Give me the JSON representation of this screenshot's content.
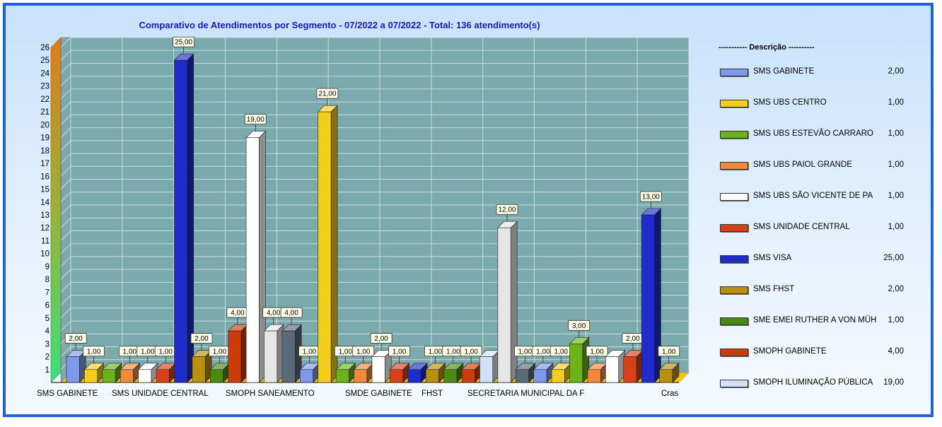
{
  "chart_data": {
    "type": "bar",
    "title": "Comparativo  de  Atendimentos  por  Segmento  -  07/2022  a  07/2022  -  Total:  136  atendimento(s)",
    "ylim": [
      0,
      26
    ],
    "yticks": [
      "1",
      "2",
      "3",
      "4",
      "5",
      "6",
      "7",
      "8",
      "9",
      "10",
      "11",
      "12",
      "13",
      "14",
      "15",
      "16",
      "17",
      "18",
      "19",
      "20",
      "21",
      "22",
      "23",
      "24",
      "25",
      "26"
    ],
    "grid": true,
    "legend_placement": "right",
    "category_labels": [
      "SMS GABINETE",
      "SMS UNIDADE CENTRAL",
      "SMOPH SANEAMENTO",
      "SMDE GABINETE",
      "FHST",
      "SECRETARIA MUNICIPAL DA F",
      "Cras"
    ],
    "legend_title": "----------- Descrição ----------",
    "legend": [
      {
        "name": "SMS GABINETE",
        "value": "2,00",
        "color": "#7e98ec"
      },
      {
        "name": "SMS UBS CENTRO",
        "value": "1,00",
        "color": "#f5cd1c"
      },
      {
        "name": "SMS UBS ESTEVÃO CARRARO",
        "value": "1,00",
        "color": "#6cb21a"
      },
      {
        "name": "SMS UBS PAIOL GRANDE",
        "value": "1,00",
        "color": "#f08a3a"
      },
      {
        "name": "SMS UBS SÃO VICENTE DE PA",
        "value": "1,00",
        "color": "#ffffff"
      },
      {
        "name": "SMS UNIDADE CENTRAL",
        "value": "1,00",
        "color": "#d8401a"
      },
      {
        "name": "SMS VISA",
        "value": "25,00",
        "color": "#1f2ccc"
      },
      {
        "name": "SMS FHST",
        "value": "2,00",
        "color": "#b8900e"
      },
      {
        "name": "SME EMEI RUTHER A VON MÜH",
        "value": "1,00",
        "color": "#4a8a10"
      },
      {
        "name": "SMOPH GABINETE",
        "value": "4,00",
        "color": "#cc3c08"
      },
      {
        "name": "SMOPH ILUMINAÇÃO PÚBLICA",
        "value": "19,00",
        "color": "#d2e1f5"
      }
    ],
    "bars": [
      {
        "value": 2,
        "label": "2,00",
        "color": "#7e98ec"
      },
      {
        "value": 1,
        "label": "1,00",
        "color": "#f5cd1c"
      },
      {
        "value": 1,
        "label": "",
        "color": "#6cb21a"
      },
      {
        "value": 1,
        "label": "1,00",
        "color": "#f08a3a"
      },
      {
        "value": 1,
        "label": "1,00",
        "color": "#ffffff"
      },
      {
        "value": 1,
        "label": "1,00",
        "color": "#d8401a"
      },
      {
        "value": 25,
        "label": "25,00",
        "color": "#1f2ccc"
      },
      {
        "value": 2,
        "label": "2,00",
        "color": "#b8900e"
      },
      {
        "value": 1,
        "label": "1,00",
        "color": "#4a8a10"
      },
      {
        "value": 4,
        "label": "4,00",
        "color": "#cc3c08"
      },
      {
        "value": 19,
        "label": "19,00",
        "color": "#ffffff"
      },
      {
        "value": 4,
        "label": "4,00",
        "color": "#e6e6e6"
      },
      {
        "value": 4,
        "label": "4,00",
        "color": "#5a6a78"
      },
      {
        "value": 1,
        "label": "1,00",
        "color": "#7e98ec"
      },
      {
        "value": 21,
        "label": "21,00",
        "color": "#f5cd1c"
      },
      {
        "value": 1,
        "label": "1,00",
        "color": "#6cb21a"
      },
      {
        "value": 1,
        "label": "1,00",
        "color": "#f08a3a"
      },
      {
        "value": 2,
        "label": "2,00",
        "color": "#ffffff"
      },
      {
        "value": 1,
        "label": "1,00",
        "color": "#d8401a"
      },
      {
        "value": 1,
        "label": "",
        "color": "#1f2ccc"
      },
      {
        "value": 1,
        "label": "1,00",
        "color": "#b8900e"
      },
      {
        "value": 1,
        "label": "1,00",
        "color": "#4a8a10"
      },
      {
        "value": 1,
        "label": "1,00",
        "color": "#cc3c08"
      },
      {
        "value": 2,
        "label": "",
        "color": "#d2e1f5"
      },
      {
        "value": 12,
        "label": "12,00",
        "color": "#e6e6e6"
      },
      {
        "value": 1,
        "label": "1,00",
        "color": "#5a6a78"
      },
      {
        "value": 1,
        "label": "1,00",
        "color": "#7e98ec"
      },
      {
        "value": 1,
        "label": "1,00",
        "color": "#f5cd1c"
      },
      {
        "value": 3,
        "label": "3,00",
        "color": "#6cb21a"
      },
      {
        "value": 1,
        "label": "1,00",
        "color": "#f08a3a"
      },
      {
        "value": 2,
        "label": "",
        "color": "#ffffff"
      },
      {
        "value": 2,
        "label": "2,00",
        "color": "#d8401a"
      },
      {
        "value": 13,
        "label": "13,00",
        "color": "#1f2ccc"
      },
      {
        "value": 1,
        "label": "1,00",
        "color": "#b8900e"
      }
    ]
  }
}
